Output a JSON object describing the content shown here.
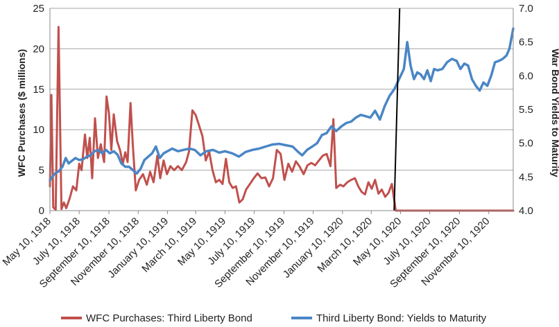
{
  "chart_data": {
    "type": "line",
    "title": "",
    "xlabel": "",
    "ylabel_left": "WFC Purchases ($ millions)",
    "ylabel_right": "War Bond Yields to Maturity",
    "y_left_lim": [
      0,
      25
    ],
    "y_left_ticks": [
      "0",
      "5",
      "10",
      "15",
      "20",
      "25"
    ],
    "y_right_lim": [
      4.0,
      7.0
    ],
    "y_right_ticks": [
      "4.0",
      "4.5",
      "5.0",
      "5.5",
      "6.0",
      "6.5",
      "7.0"
    ],
    "x_range": [
      "1918-05-10",
      "1920-12-31"
    ],
    "x_tick_labels": [
      {
        "date": "1918-05-10",
        "label": "May 10, 1918"
      },
      {
        "date": "1918-07-10",
        "label": "July 10, 1918"
      },
      {
        "date": "1918-09-10",
        "label": "September 10, 1918"
      },
      {
        "date": "1918-11-10",
        "label": "November 10, 1918"
      },
      {
        "date": "1919-01-10",
        "label": "January 10, 1919"
      },
      {
        "date": "1919-03-10",
        "label": "March 10, 1919"
      },
      {
        "date": "1919-05-10",
        "label": "May 10, 1919"
      },
      {
        "date": "1919-07-10",
        "label": "July 10, 1919"
      },
      {
        "date": "1919-09-10",
        "label": "September 10, 1919"
      },
      {
        "date": "1919-11-10",
        "label": "November 10, 1919"
      },
      {
        "date": "1920-01-10",
        "label": "January 10, 1920"
      },
      {
        "date": "1920-03-10",
        "label": "March 10, 1920"
      },
      {
        "date": "1920-05-10",
        "label": "May 10, 1920"
      },
      {
        "date": "1920-07-10",
        "label": "July 10, 1920"
      },
      {
        "date": "1920-09-10",
        "label": "September 10, 1920"
      },
      {
        "date": "1920-11-10",
        "label": "November 10, 1920"
      }
    ],
    "grid": "horizontal",
    "legend": "bottom",
    "vertical_line": {
      "date": "1920-05-01",
      "y_left_range": [
        0,
        25
      ]
    },
    "series": [
      {
        "name": "WFC Purchases: Third Liberty Bond",
        "axis": "left",
        "color": "#c0504d",
        "points": [
          [
            "1918-05-10",
            3.0
          ],
          [
            "1918-05-13",
            14.3
          ],
          [
            "1918-05-17",
            0.4
          ],
          [
            "1918-05-22",
            0.1
          ],
          [
            "1918-05-28",
            22.7
          ],
          [
            "1918-06-03",
            0.2
          ],
          [
            "1918-06-08",
            1.0
          ],
          [
            "1918-06-13",
            0.3
          ],
          [
            "1918-06-20",
            1.5
          ],
          [
            "1918-06-27",
            3.0
          ],
          [
            "1918-07-04",
            2.5
          ],
          [
            "1918-07-10",
            5.8
          ],
          [
            "1918-07-15",
            5.0
          ],
          [
            "1918-07-22",
            9.4
          ],
          [
            "1918-07-27",
            6.5
          ],
          [
            "1918-08-01",
            9.0
          ],
          [
            "1918-08-06",
            4.0
          ],
          [
            "1918-08-12",
            11.4
          ],
          [
            "1918-08-18",
            6.5
          ],
          [
            "1918-08-24",
            8.2
          ],
          [
            "1918-08-31",
            6.0
          ],
          [
            "1918-09-05",
            14.1
          ],
          [
            "1918-09-10",
            12.0
          ],
          [
            "1918-09-15",
            7.5
          ],
          [
            "1918-09-20",
            11.9
          ],
          [
            "1918-09-27",
            8.6
          ],
          [
            "1918-10-03",
            7.5
          ],
          [
            "1918-10-09",
            5.8
          ],
          [
            "1918-10-14",
            7.2
          ],
          [
            "1918-10-19",
            6.0
          ],
          [
            "1918-10-25",
            13.3
          ],
          [
            "1918-10-30",
            8.0
          ],
          [
            "1918-11-05",
            2.5
          ],
          [
            "1918-11-12",
            3.8
          ],
          [
            "1918-11-20",
            4.5
          ],
          [
            "1918-11-28",
            3.2
          ],
          [
            "1918-12-05",
            4.8
          ],
          [
            "1918-12-12",
            3.5
          ],
          [
            "1918-12-20",
            6.8
          ],
          [
            "1918-12-26",
            4.0
          ],
          [
            "1919-01-02",
            6.2
          ],
          [
            "1919-01-09",
            4.5
          ],
          [
            "1919-01-16",
            5.5
          ],
          [
            "1919-01-24",
            5.0
          ],
          [
            "1919-02-01",
            5.5
          ],
          [
            "1919-02-09",
            5.0
          ],
          [
            "1919-02-18",
            6.0
          ],
          [
            "1919-02-24",
            7.3
          ],
          [
            "1919-03-03",
            12.4
          ],
          [
            "1919-03-10",
            11.8
          ],
          [
            "1919-03-17",
            10.5
          ],
          [
            "1919-03-24",
            9.2
          ],
          [
            "1919-03-31",
            6.2
          ],
          [
            "1919-04-07",
            7.3
          ],
          [
            "1919-04-14",
            5.0
          ],
          [
            "1919-04-21",
            3.5
          ],
          [
            "1919-04-28",
            3.8
          ],
          [
            "1919-05-05",
            3.3
          ],
          [
            "1919-05-12",
            6.4
          ],
          [
            "1919-05-19",
            3.5
          ],
          [
            "1919-05-26",
            2.8
          ],
          [
            "1919-06-02",
            3.0
          ],
          [
            "1919-06-09",
            1.0
          ],
          [
            "1919-06-16",
            1.4
          ],
          [
            "1919-06-23",
            2.6
          ],
          [
            "1919-07-01",
            3.3
          ],
          [
            "1919-07-09",
            4.0
          ],
          [
            "1919-07-17",
            4.6
          ],
          [
            "1919-07-25",
            4.0
          ],
          [
            "1919-08-02",
            4.1
          ],
          [
            "1919-08-10",
            3.0
          ],
          [
            "1919-08-18",
            4.0
          ],
          [
            "1919-08-26",
            7.5
          ],
          [
            "1919-09-03",
            7.0
          ],
          [
            "1919-09-11",
            3.8
          ],
          [
            "1919-09-19",
            5.8
          ],
          [
            "1919-09-27",
            4.8
          ],
          [
            "1919-10-05",
            6.1
          ],
          [
            "1919-10-13",
            5.4
          ],
          [
            "1919-10-21",
            4.5
          ],
          [
            "1919-10-29",
            5.6
          ],
          [
            "1919-11-06",
            5.9
          ],
          [
            "1919-11-14",
            5.6
          ],
          [
            "1919-11-22",
            6.2
          ],
          [
            "1919-11-30",
            6.8
          ],
          [
            "1919-12-08",
            7.0
          ],
          [
            "1919-12-16",
            5.5
          ],
          [
            "1919-12-22",
            11.3
          ],
          [
            "1919-12-28",
            2.8
          ],
          [
            "1920-01-05",
            3.2
          ],
          [
            "1920-01-12",
            3.0
          ],
          [
            "1920-01-20",
            3.5
          ],
          [
            "1920-01-28",
            3.8
          ],
          [
            "1920-02-05",
            4.0
          ],
          [
            "1920-02-12",
            3.0
          ],
          [
            "1920-02-19",
            2.3
          ],
          [
            "1920-02-26",
            2.0
          ],
          [
            "1920-03-04",
            3.5
          ],
          [
            "1920-03-11",
            2.7
          ],
          [
            "1920-03-18",
            3.8
          ],
          [
            "1920-03-25",
            2.1
          ],
          [
            "1920-04-01",
            2.6
          ],
          [
            "1920-04-08",
            1.7
          ],
          [
            "1920-04-15",
            2.2
          ],
          [
            "1920-04-22",
            3.3
          ],
          [
            "1920-04-30",
            0.0
          ],
          [
            "1920-12-31",
            0.0
          ]
        ]
      },
      {
        "name": "Third Liberty Bond: Yields to Maturity",
        "axis": "right",
        "color": "#4a86c5",
        "points": [
          [
            "1918-05-10",
            4.45
          ],
          [
            "1918-05-20",
            4.55
          ],
          [
            "1918-05-28",
            4.58
          ],
          [
            "1918-06-05",
            4.65
          ],
          [
            "1918-06-12",
            4.78
          ],
          [
            "1918-06-18",
            4.7
          ],
          [
            "1918-06-25",
            4.74
          ],
          [
            "1918-07-02",
            4.78
          ],
          [
            "1918-07-10",
            4.75
          ],
          [
            "1918-07-18",
            4.76
          ],
          [
            "1918-07-26",
            4.8
          ],
          [
            "1918-08-03",
            4.82
          ],
          [
            "1918-08-11",
            4.88
          ],
          [
            "1918-08-19",
            4.9
          ],
          [
            "1918-08-27",
            4.85
          ],
          [
            "1918-09-04",
            4.9
          ],
          [
            "1918-09-12",
            4.85
          ],
          [
            "1918-09-20",
            4.88
          ],
          [
            "1918-09-28",
            4.83
          ],
          [
            "1918-10-06",
            4.7
          ],
          [
            "1918-10-14",
            4.65
          ],
          [
            "1918-10-22",
            4.65
          ],
          [
            "1918-10-30",
            4.6
          ],
          [
            "1918-11-07",
            4.55
          ],
          [
            "1918-11-15",
            4.62
          ],
          [
            "1918-11-23",
            4.75
          ],
          [
            "1918-12-01",
            4.8
          ],
          [
            "1918-12-09",
            4.85
          ],
          [
            "1918-12-17",
            4.95
          ],
          [
            "1918-12-25",
            4.78
          ],
          [
            "1919-01-02",
            4.85
          ],
          [
            "1919-01-10",
            4.88
          ],
          [
            "1919-01-20",
            4.92
          ],
          [
            "1919-02-01",
            4.88
          ],
          [
            "1919-02-12",
            4.9
          ],
          [
            "1919-02-25",
            4.92
          ],
          [
            "1919-03-08",
            4.9
          ],
          [
            "1919-03-20",
            4.82
          ],
          [
            "1919-04-01",
            4.88
          ],
          [
            "1919-04-15",
            4.9
          ],
          [
            "1919-04-28",
            4.86
          ],
          [
            "1919-05-10",
            4.88
          ],
          [
            "1919-05-25",
            4.85
          ],
          [
            "1919-06-08",
            4.8
          ],
          [
            "1919-06-22",
            4.87
          ],
          [
            "1919-07-06",
            4.9
          ],
          [
            "1919-07-20",
            4.92
          ],
          [
            "1919-08-03",
            4.95
          ],
          [
            "1919-08-17",
            4.98
          ],
          [
            "1919-08-31",
            4.99
          ],
          [
            "1919-09-14",
            4.97
          ],
          [
            "1919-09-28",
            4.95
          ],
          [
            "1919-10-08",
            4.88
          ],
          [
            "1919-10-18",
            4.82
          ],
          [
            "1919-10-28",
            4.9
          ],
          [
            "1919-11-08",
            4.95
          ],
          [
            "1919-11-18",
            5.0
          ],
          [
            "1919-11-28",
            5.12
          ],
          [
            "1919-12-08",
            5.15
          ],
          [
            "1919-12-18",
            5.25
          ],
          [
            "1919-12-28",
            5.18
          ],
          [
            "1920-01-08",
            5.25
          ],
          [
            "1920-01-18",
            5.3
          ],
          [
            "1920-01-28",
            5.32
          ],
          [
            "1920-02-07",
            5.38
          ],
          [
            "1920-02-17",
            5.42
          ],
          [
            "1920-02-27",
            5.4
          ],
          [
            "1920-03-08",
            5.38
          ],
          [
            "1920-03-18",
            5.48
          ],
          [
            "1920-03-28",
            5.35
          ],
          [
            "1920-04-07",
            5.55
          ],
          [
            "1920-04-17",
            5.7
          ],
          [
            "1920-04-27",
            5.8
          ],
          [
            "1920-05-07",
            5.95
          ],
          [
            "1920-05-17",
            6.1
          ],
          [
            "1920-05-24",
            6.5
          ],
          [
            "1920-05-31",
            6.15
          ],
          [
            "1920-06-07",
            5.95
          ],
          [
            "1920-06-14",
            6.05
          ],
          [
            "1920-06-21",
            6.02
          ],
          [
            "1920-06-28",
            5.95
          ],
          [
            "1920-07-05",
            6.08
          ],
          [
            "1920-07-12",
            5.92
          ],
          [
            "1920-07-19",
            6.1
          ],
          [
            "1920-07-26",
            6.08
          ],
          [
            "1920-08-05",
            6.1
          ],
          [
            "1920-08-15",
            6.2
          ],
          [
            "1920-08-25",
            6.25
          ],
          [
            "1920-09-04",
            6.22
          ],
          [
            "1920-09-12",
            6.1
          ],
          [
            "1920-09-20",
            6.18
          ],
          [
            "1920-09-28",
            6.15
          ],
          [
            "1920-10-06",
            5.95
          ],
          [
            "1920-10-14",
            5.85
          ],
          [
            "1920-10-22",
            5.78
          ],
          [
            "1920-10-30",
            5.9
          ],
          [
            "1920-11-07",
            5.85
          ],
          [
            "1920-11-15",
            6.0
          ],
          [
            "1920-11-23",
            6.2
          ],
          [
            "1920-12-01",
            6.22
          ],
          [
            "1920-12-09",
            6.25
          ],
          [
            "1920-12-17",
            6.3
          ],
          [
            "1920-12-23",
            6.4
          ],
          [
            "1920-12-31",
            6.7
          ]
        ]
      }
    ]
  }
}
